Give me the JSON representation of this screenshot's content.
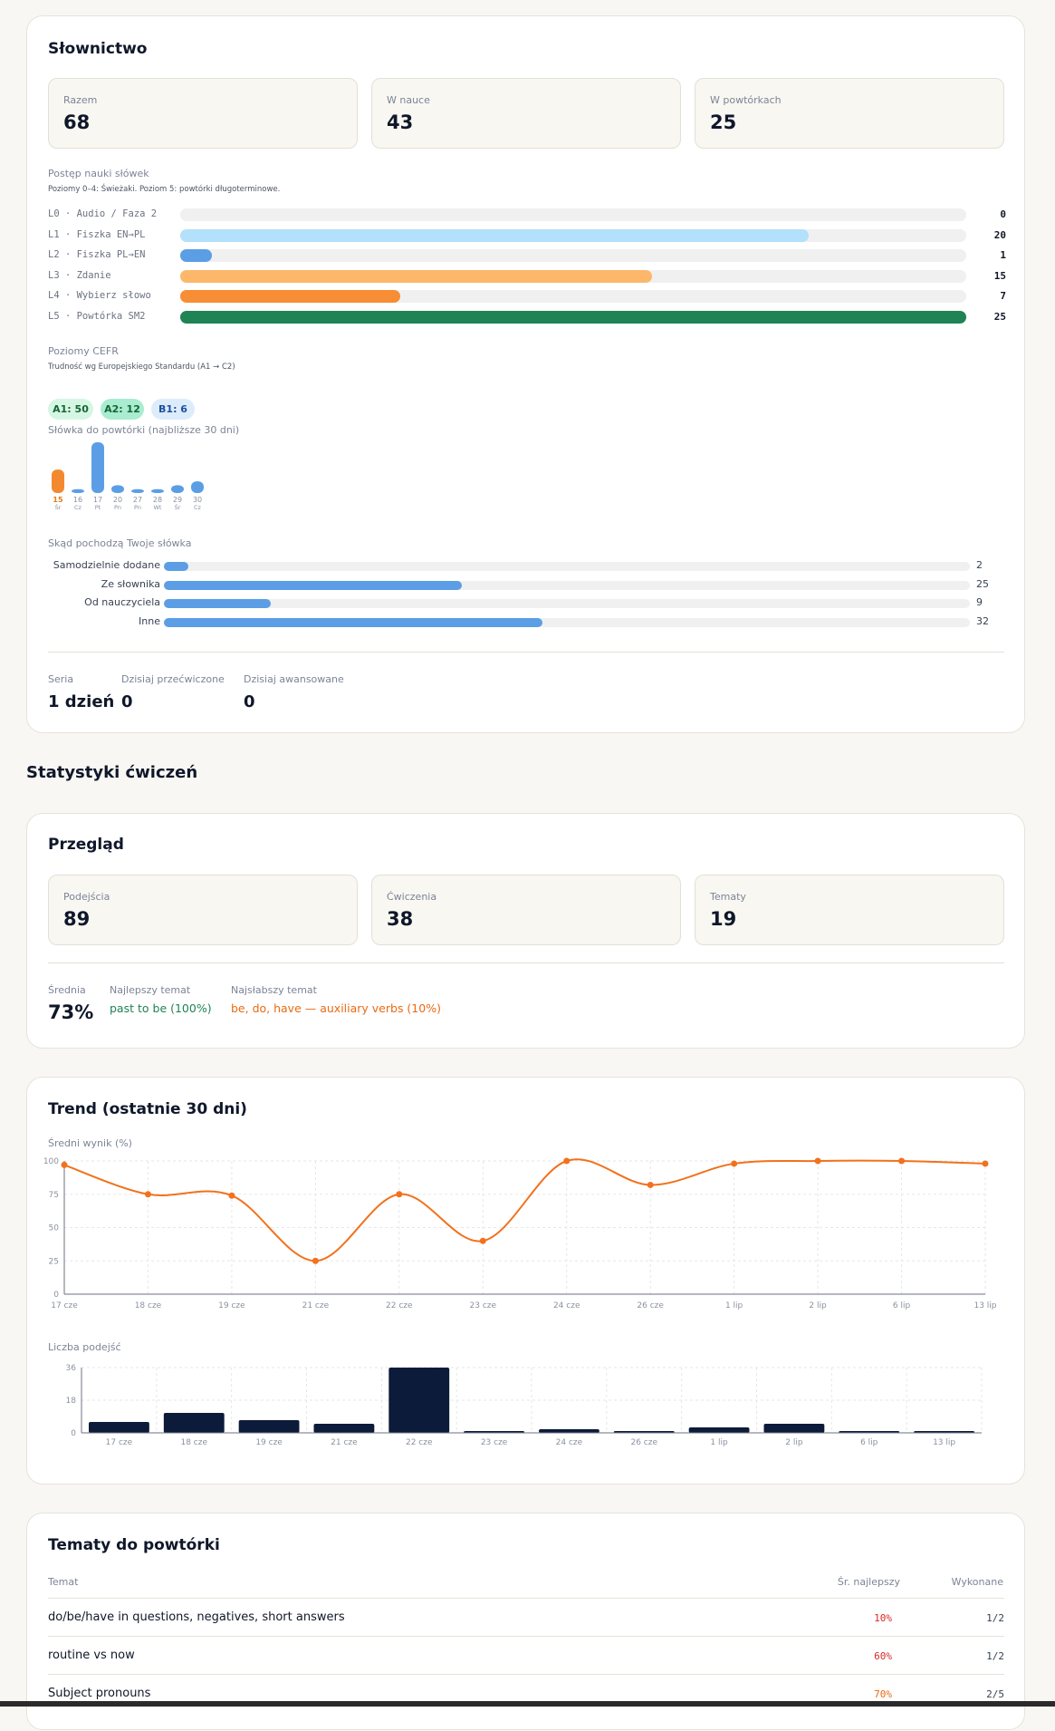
{
  "vocab": {
    "title": "Słownictwo",
    "stats": [
      {
        "label": "Razem",
        "value": "68"
      },
      {
        "label": "W nauce",
        "value": "43"
      },
      {
        "label": "W powtórkach",
        "value": "25"
      }
    ],
    "progress": {
      "label": "Postęp nauki słówek",
      "subtitle": "Poziomy 0–4: Świeżaki. Poziom 5: powtórki długoterminowe.",
      "levels": [
        {
          "label": "L0 · Audio / Faza 2",
          "value": "0",
          "fraction": 0,
          "color": "#9ec9f2"
        },
        {
          "label": "L1 · Fiszka EN→PL",
          "value": "20",
          "fraction": 0.8,
          "color": "#b3e0fa"
        },
        {
          "label": "L2 · Fiszka PL→EN",
          "value": "1",
          "fraction": 0.04,
          "color": "#5b9ee6"
        },
        {
          "label": "L3 · Zdanie",
          "value": "15",
          "fraction": 0.6,
          "color": "#fdb76a"
        },
        {
          "label": "L4 · Wybierz słowo",
          "value": "7",
          "fraction": 0.28,
          "color": "#f78d34"
        },
        {
          "label": "L5 · Powtórka SM2",
          "value": "25",
          "fraction": 1.0,
          "color": "#1f8355"
        }
      ]
    },
    "cefr": {
      "label": "Poziomy CEFR",
      "subtitle": "Trudność wg Europejskiego Standardu (A1 → C2)",
      "pills": [
        {
          "text": "A1: 50",
          "bg": "#d6f6e4",
          "fg": "#166534"
        },
        {
          "text": "A2: 12",
          "bg": "#a9ecd0",
          "fg": "#166534"
        },
        {
          "text": "B1: 6",
          "bg": "#dcecfb",
          "fg": "#1e4f9c"
        }
      ]
    },
    "review": {
      "label": "Słówka do powtórki (najbliższe 30 dni)",
      "days": [
        {
          "date": "15",
          "dow": "Śr",
          "count": 6,
          "highlight": true
        },
        {
          "date": "16",
          "dow": "Cz",
          "count": 1,
          "highlight": false
        },
        {
          "date": "17",
          "dow": "Pt",
          "count": 13,
          "highlight": false
        },
        {
          "date": "20",
          "dow": "Pn",
          "count": 2,
          "highlight": false
        },
        {
          "date": "27",
          "dow": "Pn",
          "count": 1,
          "highlight": false
        },
        {
          "date": "28",
          "dow": "Wt",
          "count": 1,
          "highlight": false
        },
        {
          "date": "29",
          "dow": "Śr",
          "count": 2,
          "highlight": false
        },
        {
          "date": "30",
          "dow": "Cz",
          "count": 3,
          "highlight": false
        }
      ]
    },
    "sources": {
      "label": "Skąd pochodzą Twoje słówka",
      "items": [
        {
          "label": "Samodzielnie dodane",
          "value": "2",
          "fraction": 0.03
        },
        {
          "label": "Ze słownika",
          "value": "25",
          "fraction": 0.37
        },
        {
          "label": "Od nauczyciela",
          "value": "9",
          "fraction": 0.133
        },
        {
          "label": "Inne",
          "value": "32",
          "fraction": 0.47
        }
      ]
    },
    "footer": [
      {
        "label": "Seria",
        "value": "1 dzień"
      },
      {
        "label": "Dzisiaj przećwiczone",
        "value": "0"
      },
      {
        "label": "Dzisiaj awansowane",
        "value": "0"
      }
    ]
  },
  "exercise_heading": "Statystyki ćwiczeń",
  "overview": {
    "title": "Przegląd",
    "stats": [
      {
        "label": "Podejścia",
        "value": "89"
      },
      {
        "label": "Ćwiczenia",
        "value": "38"
      },
      {
        "label": "Tematy",
        "value": "19"
      }
    ],
    "avg_label": "Średnia",
    "avg_value": "73%",
    "best_label": "Najlepszy temat",
    "best_value": "past to be (100%)",
    "best_color": "#1f8355",
    "worst_label": "Najsłabszy temat",
    "worst_value": "be, do, have — auxiliary verbs (10%)",
    "worst_color": "#ea6a12"
  },
  "trend": {
    "title": "Trend (ostatnie 30 dni)",
    "line_label": "Średni wynik (%)",
    "bar_label": "Liczba podejść"
  },
  "chart_data": [
    {
      "type": "line",
      "title": "",
      "ylabel": "Średni wynik (%)",
      "ylim": [
        0,
        100
      ],
      "yticks": [
        0,
        25,
        50,
        75,
        100
      ],
      "color": "#f2711c",
      "x": [
        "17 cze",
        "18 cze",
        "19 cze",
        "21 cze",
        "22 cze",
        "23 cze",
        "24 cze",
        "26 cze",
        "1 lip",
        "2 lip",
        "6 lip",
        "13 lip"
      ],
      "values": [
        97,
        75,
        74,
        25,
        75,
        40,
        100,
        82,
        98,
        100,
        100,
        98
      ]
    },
    {
      "type": "bar",
      "title": "",
      "ylabel": "Liczba podejść",
      "ylim": [
        0,
        36
      ],
      "yticks": [
        0,
        18,
        36
      ],
      "color": "#0d1b3a",
      "categories": [
        "17 cze",
        "18 cze",
        "19 cze",
        "21 cze",
        "22 cze",
        "23 cze",
        "24 cze",
        "26 cze",
        "1 lip",
        "2 lip",
        "6 lip",
        "13 lip"
      ],
      "values": [
        6,
        11,
        7,
        5,
        36,
        1,
        2,
        1,
        3,
        5,
        1,
        1
      ]
    }
  ],
  "topics": {
    "title": "Tematy do powtórki",
    "col_topic": "Temat",
    "col_avg": "Śr. najlepszy",
    "col_done": "Wykonane",
    "rows": [
      {
        "topic": "do/be/have in questions, negatives, short answers",
        "avg": "10%",
        "done": "1/2",
        "color": "#dc2626"
      },
      {
        "topic": "routine vs now",
        "avg": "60%",
        "done": "1/2",
        "color": "#dc2626"
      },
      {
        "topic": "Subject pronouns",
        "avg": "70%",
        "done": "2/5",
        "color": "#ea6a12"
      }
    ]
  }
}
